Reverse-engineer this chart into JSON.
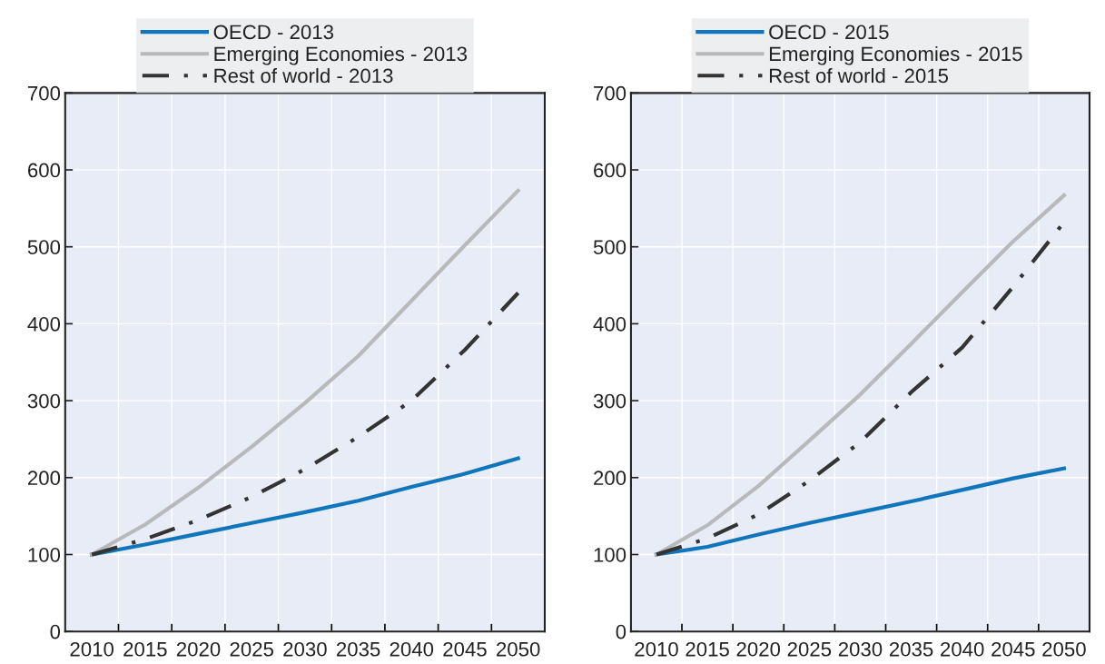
{
  "chart_data": [
    {
      "type": "line",
      "x": [
        2010,
        2015,
        2020,
        2025,
        2030,
        2035,
        2040,
        2045,
        2050
      ],
      "series": [
        {
          "name": "OECD - 2013",
          "color": "#0f75bc",
          "line_style": "solid",
          "values": [
            100,
            113,
            127,
            141,
            155,
            170,
            188,
            205,
            225
          ]
        },
        {
          "name": "Emerging Economies - 2013",
          "color": "#b8b9bb",
          "line_style": "solid",
          "values": [
            100,
            139,
            187,
            240,
            297,
            358,
            430,
            502,
            573
          ]
        },
        {
          "name": "Rest of world - 2013",
          "color": "#333333",
          "line_style": "dashdot",
          "values": [
            100,
            120,
            145,
            175,
            211,
            253,
            300,
            366,
            440
          ]
        }
      ],
      "xlim": [
        2007.5,
        2052.5
      ],
      "xticks": [
        2010,
        {
          "value": 2012.5,
          "label": null
        },
        2015,
        {
          "value": 2017.5,
          "label": null
        },
        2020,
        {
          "value": 2022.5,
          "label": null
        },
        2025,
        {
          "value": 2027.5,
          "label": null
        },
        2030,
        {
          "value": 2032.5,
          "label": null
        },
        2035,
        {
          "value": 2037.5,
          "label": null
        },
        2040,
        {
          "value": 2042.5,
          "label": null
        },
        2045,
        {
          "value": 2047.5,
          "label": null
        },
        2050
      ],
      "ylim": [
        0,
        700
      ],
      "yticks": [
        0,
        100,
        200,
        300,
        400,
        500,
        600,
        700
      ],
      "grid": true,
      "legend": "top"
    },
    {
      "type": "line",
      "x": [
        2010,
        2015,
        2020,
        2025,
        2030,
        2035,
        2040,
        2045,
        2050
      ],
      "series": [
        {
          "name": "OECD - 2015",
          "color": "#0f75bc",
          "line_style": "solid",
          "values": [
            100,
            110,
            126,
            141,
            155,
            169,
            184,
            199,
            212
          ]
        },
        {
          "name": "Emerging Economies - 2015",
          "color": "#b8b9bb",
          "line_style": "solid",
          "values": [
            100,
            138,
            189,
            248,
            308,
            374,
            441,
            507,
            567
          ]
        },
        {
          "name": "Rest of world - 2015",
          "color": "#333333",
          "line_style": "dashdot",
          "values": [
            100,
            121,
            152,
            196,
            246,
            311,
            369,
            448,
            532
          ]
        }
      ],
      "xlim": [
        2007.5,
        2052.5
      ],
      "xticks": [
        2010,
        {
          "value": 2012.5,
          "label": null
        },
        2015,
        {
          "value": 2017.5,
          "label": null
        },
        2020,
        {
          "value": 2022.5,
          "label": null
        },
        2025,
        {
          "value": 2027.5,
          "label": null
        },
        2030,
        {
          "value": 2032.5,
          "label": null
        },
        2035,
        {
          "value": 2037.5,
          "label": null
        },
        2040,
        {
          "value": 2042.5,
          "label": null
        },
        2045,
        {
          "value": 2047.5,
          "label": null
        },
        2050
      ],
      "ylim": [
        0,
        700
      ],
      "yticks": [
        0,
        100,
        200,
        300,
        400,
        500,
        600,
        700
      ],
      "grid": true,
      "legend": "top"
    }
  ]
}
